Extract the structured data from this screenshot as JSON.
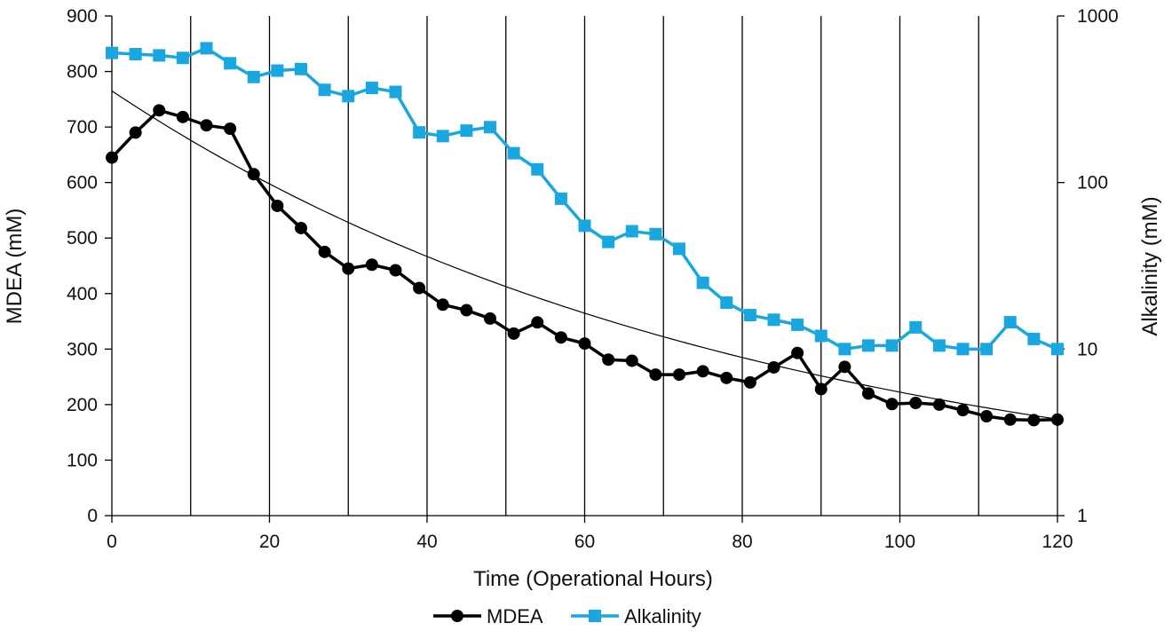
{
  "chart_data": {
    "type": "line",
    "title": "",
    "xlabel": "Time (Operational Hours)",
    "ylabel": "MDEA  (mM)",
    "y2label": "Alkalinity (mM)",
    "xlim": [
      0,
      120
    ],
    "ylim": [
      0,
      900
    ],
    "y2lim": [
      1,
      1000
    ],
    "y2scale": "log",
    "x_ticks": [
      "0",
      "20",
      "40",
      "60",
      "80",
      "100",
      "120"
    ],
    "y_ticks": [
      "0",
      "100",
      "200",
      "300",
      "400",
      "500",
      "600",
      "700",
      "800",
      "900"
    ],
    "y2_ticks": [
      "1",
      "10",
      "100",
      "1000"
    ],
    "vertical_gridlines_at": [
      10,
      20,
      30,
      40,
      50,
      60,
      70,
      80,
      90,
      100,
      110
    ],
    "legend_position": "bottom",
    "series": [
      {
        "name": "MDEA",
        "axis": "left",
        "color": "#000000",
        "marker": "circle",
        "x": [
          0,
          3,
          6,
          9,
          12,
          15,
          18,
          21,
          24,
          27,
          30,
          33,
          36,
          39,
          42,
          45,
          48,
          51,
          54,
          57,
          60,
          63,
          66,
          69,
          72,
          75,
          78,
          81,
          84,
          87,
          90,
          93,
          96,
          99,
          102,
          105,
          108,
          111,
          114,
          117,
          120
        ],
        "y": [
          645,
          690,
          730,
          718,
          703,
          697,
          615,
          558,
          518,
          475,
          445,
          452,
          442,
          410,
          380,
          370,
          355,
          328,
          348,
          321,
          310,
          281,
          279,
          254,
          254,
          260,
          248,
          240,
          267,
          293,
          228,
          268,
          220,
          201,
          203,
          200,
          190,
          179,
          173,
          172,
          173
        ]
      },
      {
        "name": "Alkalinity",
        "axis": "right",
        "color": "#1aa7e0",
        "marker": "square",
        "x": [
          0,
          3,
          6,
          9,
          12,
          15,
          18,
          21,
          24,
          27,
          30,
          33,
          36,
          39,
          42,
          45,
          48,
          51,
          54,
          57,
          60,
          63,
          66,
          69,
          72,
          75,
          78,
          81,
          84,
          87,
          90,
          93,
          96,
          99,
          102,
          105,
          108,
          111,
          114,
          117,
          120
        ],
        "y": [
          600,
          590,
          580,
          560,
          640,
          520,
          430,
          470,
          480,
          360,
          330,
          370,
          350,
          200,
          190,
          205,
          215,
          150,
          120,
          80,
          55,
          44,
          51,
          49,
          40,
          25,
          19,
          16,
          15,
          14,
          12,
          10,
          10.5,
          10.5,
          13.5,
          10.5,
          10,
          10,
          14.5,
          11.5,
          10
        ]
      },
      {
        "name": "",
        "axis": "left",
        "color": "#000000",
        "marker": "none",
        "fit": "exponential",
        "fit_params": {
          "a": 765,
          "k": 0.01235
        }
      }
    ]
  }
}
